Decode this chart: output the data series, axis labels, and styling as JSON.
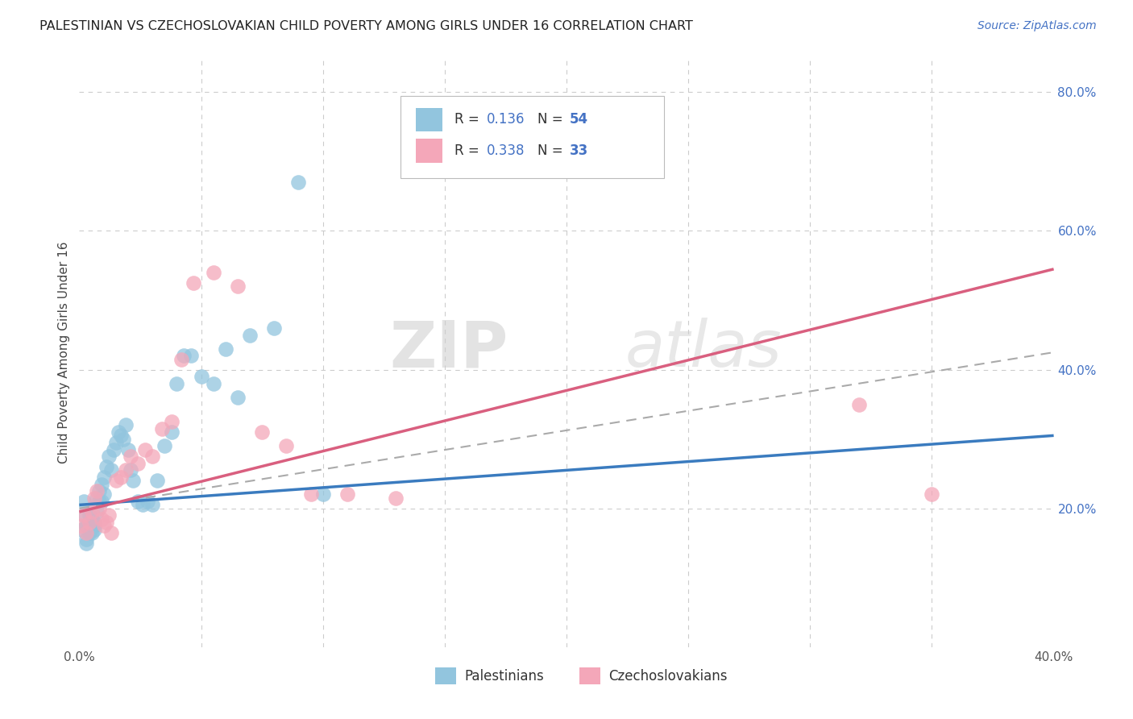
{
  "title": "PALESTINIAN VS CZECHOSLOVAKIAN CHILD POVERTY AMONG GIRLS UNDER 16 CORRELATION CHART",
  "source": "Source: ZipAtlas.com",
  "ylabel": "Child Poverty Among Girls Under 16",
  "xlim": [
    0.0,
    0.4
  ],
  "ylim": [
    0.0,
    0.85
  ],
  "ytick_positions": [
    0.2,
    0.4,
    0.6,
    0.8
  ],
  "ytick_labels": [
    "20.0%",
    "40.0%",
    "60.0%",
    "80.0%"
  ],
  "blue_R": 0.136,
  "blue_N": 54,
  "pink_R": 0.338,
  "pink_N": 33,
  "blue_color": "#92c5de",
  "pink_color": "#f4a7b9",
  "blue_line_color": "#3a7bbf",
  "pink_line_color": "#d95f7f",
  "legend_label_blue": "Palestinians",
  "legend_label_pink": "Czechoslovakians",
  "blue_x": [
    0.001,
    0.002,
    0.002,
    0.003,
    0.003,
    0.003,
    0.004,
    0.004,
    0.004,
    0.005,
    0.005,
    0.005,
    0.005,
    0.006,
    0.006,
    0.006,
    0.007,
    0.007,
    0.008,
    0.008,
    0.009,
    0.009,
    0.01,
    0.01,
    0.011,
    0.012,
    0.013,
    0.014,
    0.015,
    0.016,
    0.017,
    0.018,
    0.019,
    0.02,
    0.021,
    0.022,
    0.024,
    0.026,
    0.028,
    0.03,
    0.032,
    0.035,
    0.038,
    0.04,
    0.043,
    0.046,
    0.05,
    0.055,
    0.06,
    0.065,
    0.07,
    0.08,
    0.09,
    0.1
  ],
  "blue_y": [
    0.17,
    0.19,
    0.21,
    0.15,
    0.175,
    0.155,
    0.18,
    0.19,
    0.165,
    0.175,
    0.185,
    0.165,
    0.195,
    0.17,
    0.18,
    0.175,
    0.195,
    0.215,
    0.21,
    0.225,
    0.21,
    0.235,
    0.22,
    0.245,
    0.26,
    0.275,
    0.255,
    0.285,
    0.295,
    0.31,
    0.305,
    0.3,
    0.32,
    0.285,
    0.255,
    0.24,
    0.21,
    0.205,
    0.21,
    0.205,
    0.24,
    0.29,
    0.31,
    0.38,
    0.42,
    0.42,
    0.39,
    0.38,
    0.43,
    0.36,
    0.45,
    0.46,
    0.67,
    0.22
  ],
  "pink_x": [
    0.001,
    0.002,
    0.003,
    0.004,
    0.005,
    0.006,
    0.007,
    0.008,
    0.009,
    0.01,
    0.011,
    0.012,
    0.013,
    0.015,
    0.017,
    0.019,
    0.021,
    0.024,
    0.027,
    0.03,
    0.034,
    0.038,
    0.042,
    0.047,
    0.055,
    0.065,
    0.075,
    0.085,
    0.095,
    0.11,
    0.13,
    0.32,
    0.35
  ],
  "pink_y": [
    0.175,
    0.19,
    0.165,
    0.18,
    0.195,
    0.215,
    0.225,
    0.2,
    0.185,
    0.175,
    0.18,
    0.19,
    0.165,
    0.24,
    0.245,
    0.255,
    0.275,
    0.265,
    0.285,
    0.275,
    0.315,
    0.325,
    0.415,
    0.525,
    0.54,
    0.52,
    0.31,
    0.29,
    0.22,
    0.22,
    0.215,
    0.35,
    0.22
  ],
  "background_color": "#ffffff",
  "grid_color": "#cccccc",
  "watermark_part1": "ZIP",
  "watermark_part2": "atlas",
  "title_fontsize": 11.5,
  "axis_label_fontsize": 11
}
